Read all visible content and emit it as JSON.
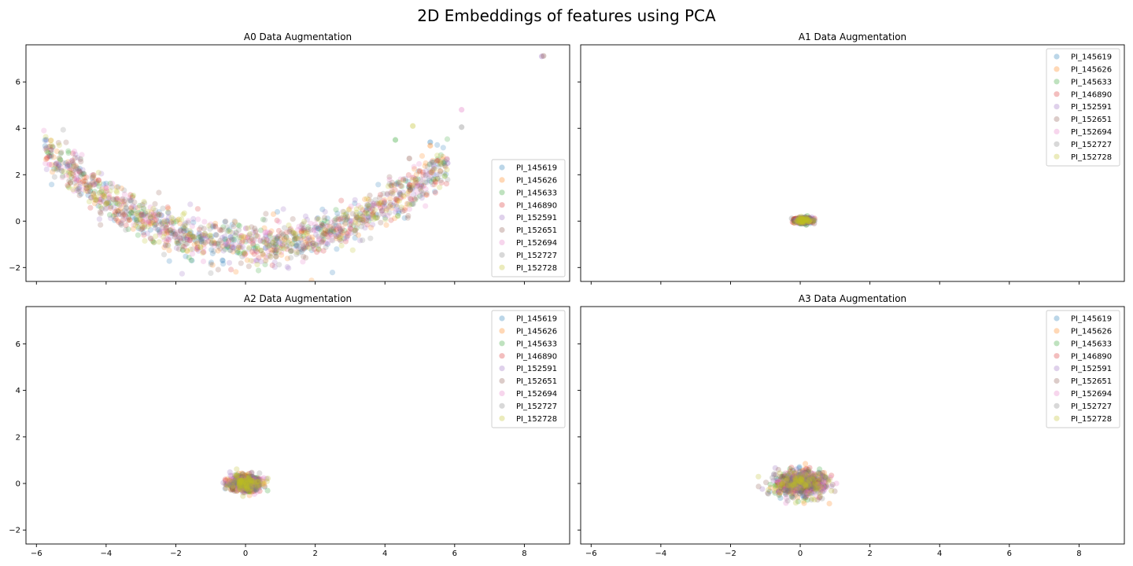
{
  "suptitle": "2D Embeddings of features using PCA",
  "series_colors": [
    "#1f77b4",
    "#ff7f0e",
    "#2ca02c",
    "#d62728",
    "#9467bd",
    "#8c564b",
    "#e377c2",
    "#7f7f7f",
    "#bcbd22"
  ],
  "legend_labels": [
    "PI_145619",
    "PI_145626",
    "PI_145633",
    "PI_146890",
    "PI_152591",
    "PI_152651",
    "PI_152694",
    "PI_152727",
    "PI_152728"
  ],
  "chart_data": [
    {
      "type": "scatter",
      "title": "A0 Data Augmentation",
      "xlim": [
        -6.3,
        9.3
      ],
      "ylim": [
        -2.6,
        7.6
      ],
      "xticks": [
        -6,
        -4,
        -2,
        0,
        2,
        4,
        6,
        8
      ],
      "yticks": [
        -2,
        0,
        2,
        4,
        6
      ],
      "show_xtick_labels": false,
      "show_ytick_labels": true,
      "legend_position": "lower right",
      "grid": false,
      "point_alpha": 0.22,
      "cloud": {
        "shape": "parabola",
        "x_range": [
          -5.8,
          5.8
        ],
        "vertex_x": 0.2,
        "vertex_y": -1.0,
        "curvature": 0.115,
        "spread_y": 0.45,
        "points_per_series": 170
      },
      "extra_points": [
        [
          8.5,
          7.1
        ],
        [
          8.55,
          7.12
        ],
        [
          6.2,
          4.8
        ],
        [
          6.2,
          4.05
        ],
        [
          4.8,
          4.1
        ],
        [
          5.3,
          3.4
        ],
        [
          5.3,
          3.25
        ],
        [
          4.3,
          3.5
        ],
        [
          5.5,
          2.6
        ],
        [
          5.8,
          2.5
        ],
        [
          4.7,
          2.7
        ]
      ]
    },
    {
      "type": "scatter",
      "title": "A1 Data Augmentation",
      "xlim": [
        -6.3,
        9.3
      ],
      "ylim": [
        -2.6,
        7.6
      ],
      "xticks": [
        -6,
        -4,
        -2,
        0,
        2,
        4,
        6,
        8
      ],
      "yticks": [
        -2,
        0,
        2,
        4,
        6
      ],
      "show_xtick_labels": false,
      "show_ytick_labels": false,
      "legend_position": "upper right",
      "grid": false,
      "point_alpha": 0.3,
      "cloud": {
        "shape": "blob",
        "center": [
          0.1,
          0.03
        ],
        "spread_x": 0.12,
        "spread_y": 0.06,
        "points_per_series": 45
      }
    },
    {
      "type": "scatter",
      "title": "A2 Data Augmentation",
      "xlim": [
        -6.3,
        9.3
      ],
      "ylim": [
        -2.6,
        7.6
      ],
      "xticks": [
        -6,
        -4,
        -2,
        0,
        2,
        4,
        6,
        8
      ],
      "yticks": [
        -2,
        0,
        2,
        4,
        6
      ],
      "show_xtick_labels": true,
      "show_ytick_labels": true,
      "legend_position": "upper right",
      "grid": false,
      "point_alpha": 0.25,
      "cloud": {
        "shape": "blob",
        "center": [
          0.0,
          0.0
        ],
        "spread_x": 0.22,
        "spread_y": 0.17,
        "points_per_series": 90
      }
    },
    {
      "type": "scatter",
      "title": "A3 Data Augmentation",
      "xlim": [
        -6.3,
        9.3
      ],
      "ylim": [
        -2.6,
        7.6
      ],
      "xticks": [
        -6,
        -4,
        -2,
        0,
        2,
        4,
        6,
        8
      ],
      "yticks": [
        -2,
        0,
        2,
        4,
        6
      ],
      "show_xtick_labels": true,
      "show_ytick_labels": false,
      "legend_position": "upper right",
      "grid": false,
      "point_alpha": 0.25,
      "cloud": {
        "shape": "blob",
        "center": [
          0.0,
          0.0
        ],
        "spread_x": 0.35,
        "spread_y": 0.28,
        "points_per_series": 90
      }
    }
  ]
}
